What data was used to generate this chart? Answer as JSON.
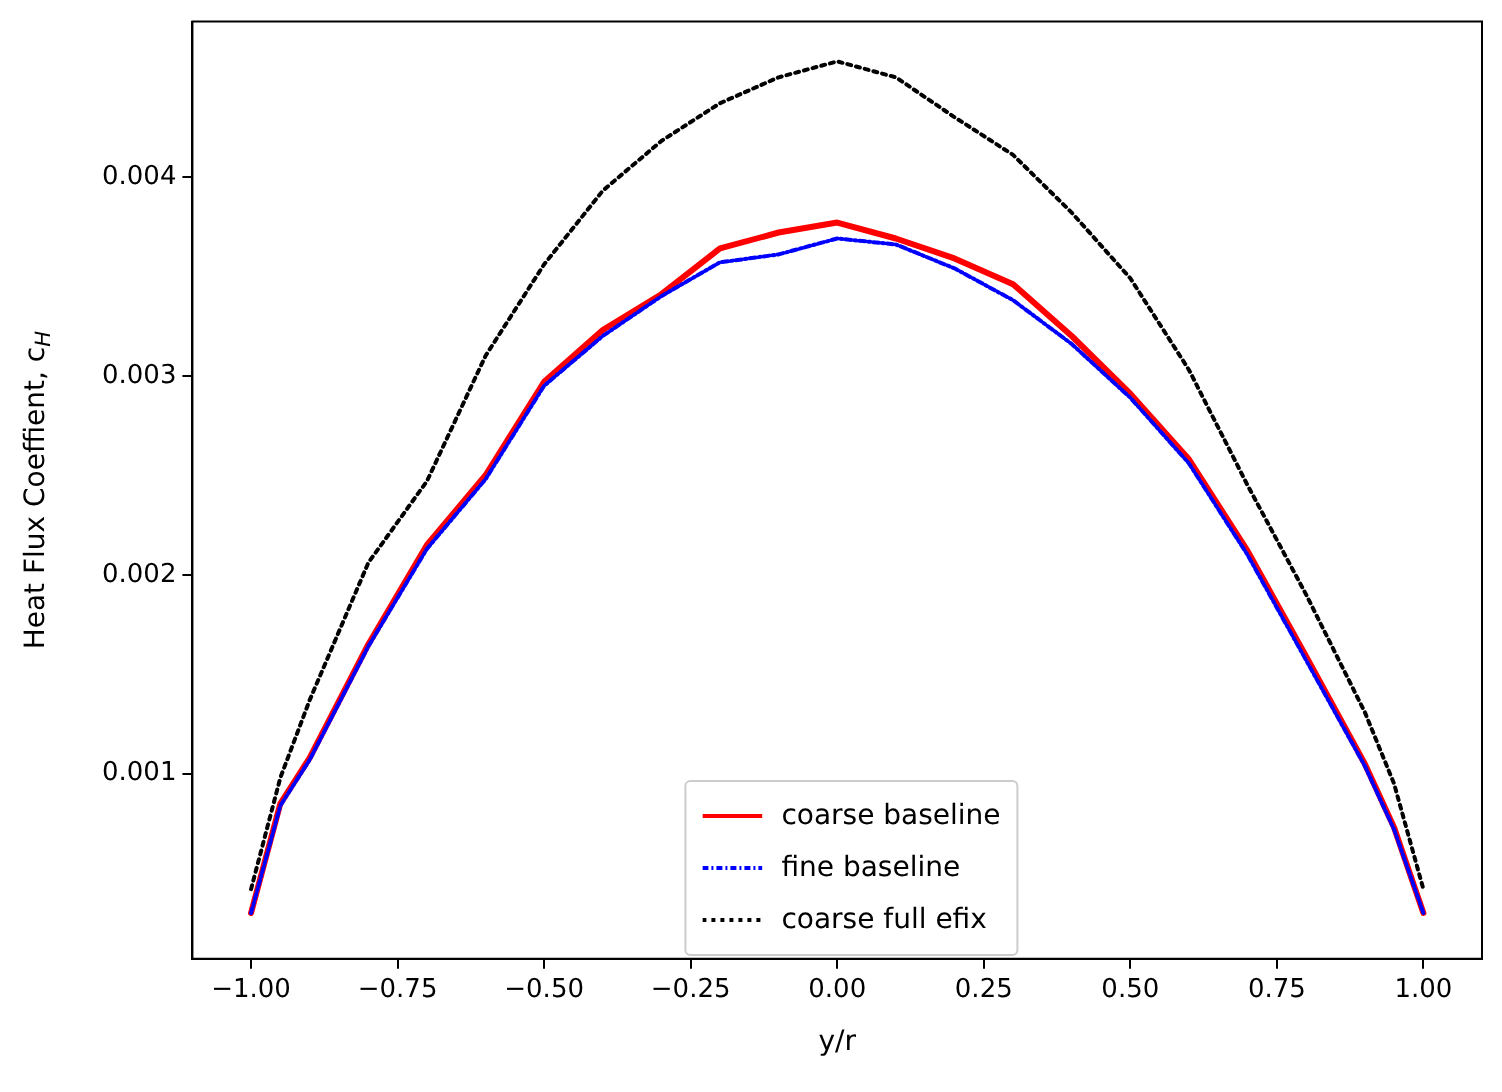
{
  "chart_data": {
    "type": "line",
    "xlabel": "y/r",
    "ylabel": "Heat Flux Coeffient, c$_{H}$",
    "x": [
      -1,
      -0.95,
      -0.9,
      -0.8,
      -0.7,
      -0.6,
      -0.5,
      -0.4,
      -0.3,
      -0.2,
      -0.1,
      0,
      0.1,
      0.2,
      0.3,
      0.4,
      0.5,
      0.6,
      0.7,
      0.8,
      0.9,
      0.95,
      1
    ],
    "series": [
      {
        "name": "coarse baseline",
        "color": "#ff0000",
        "line_style": "solid",
        "values": [
          0.0003,
          0.00085,
          0.00108,
          0.00165,
          0.00215,
          0.0025,
          0.00297,
          0.00323,
          0.00341,
          0.00364,
          0.00372,
          0.00377,
          0.00369,
          0.00359,
          0.00346,
          0.0032,
          0.00291,
          0.00258,
          0.00212,
          0.00159,
          0.00105,
          0.00073,
          0.0003
        ]
      },
      {
        "name": "fine baseline",
        "color": "#0000ff",
        "line_style": "dashed",
        "values": [
          0.0003,
          0.00084,
          0.00107,
          0.00164,
          0.00213,
          0.00248,
          0.00295,
          0.0032,
          0.0034,
          0.00357,
          0.00361,
          0.00369,
          0.00366,
          0.00354,
          0.00338,
          0.00316,
          0.00289,
          0.00256,
          0.0021,
          0.00157,
          0.00104,
          0.00072,
          0.0003
        ]
      },
      {
        "name": "coarse full efix",
        "color": "#000000",
        "line_style": "dotted",
        "values": [
          0.00042,
          0.00098,
          0.00137,
          0.00206,
          0.00247,
          0.0031,
          0.00356,
          0.00393,
          0.00418,
          0.00437,
          0.0045,
          0.00458,
          0.0045,
          0.0043,
          0.00411,
          0.00382,
          0.00349,
          0.00303,
          0.00245,
          0.0019,
          0.00131,
          0.00095,
          0.00042
        ]
      }
    ],
    "xlim": [
      -1.1,
      1.1
    ],
    "ylim": [
      7e-05,
      0.00478
    ],
    "xticks": [
      {
        "value": -1,
        "label": "−1.00"
      },
      {
        "value": -0.75,
        "label": "−0.75"
      },
      {
        "value": -0.5,
        "label": "−0.50"
      },
      {
        "value": -0.25,
        "label": "−0.25"
      },
      {
        "value": 0,
        "label": "0.00"
      },
      {
        "value": 0.25,
        "label": "0.25"
      },
      {
        "value": 0.5,
        "label": "0.50"
      },
      {
        "value": 0.75,
        "label": "0.75"
      },
      {
        "value": 1,
        "label": "1.00"
      }
    ],
    "yticks": [
      0.001,
      0.002,
      0.003,
      0.004
    ],
    "grid": false,
    "legend": "bottom",
    "marker": "none"
  }
}
